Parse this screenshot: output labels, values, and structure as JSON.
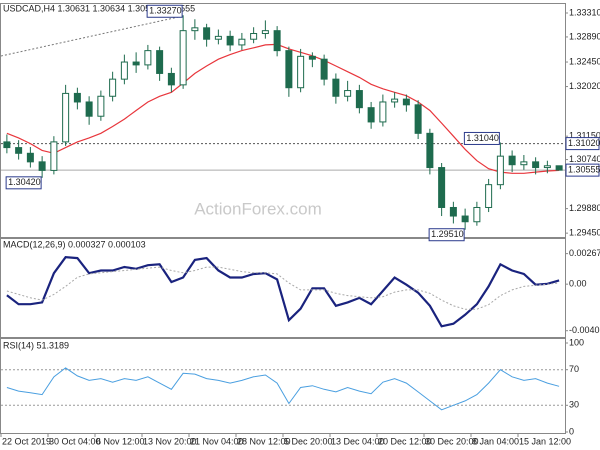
{
  "chart_data": [
    {
      "type": "candlestick",
      "title": "USDCAD,H4 1.30631 1.30634 1.30553 1.30555",
      "watermark": "ActionForex.com",
      "categories": [
        "22 Oct 2019",
        null,
        null,
        null,
        "30 Oct 04:00",
        null,
        null,
        null,
        "6 Nov 12:00",
        null,
        null,
        null,
        "13 Nov 20:00",
        null,
        null,
        null,
        "21 Nov 04:00",
        null,
        null,
        null,
        "28 Nov 12:00",
        null,
        null,
        null,
        "5 Dec 20:00",
        null,
        null,
        null,
        "13 Dec 04:00",
        null,
        null,
        null,
        "20 Dec 12:00",
        null,
        null,
        null,
        "30 Dec 20:00",
        null,
        null,
        null,
        "8 Jan 04:00",
        null,
        null,
        null,
        "15 Jan 12:00",
        null,
        null,
        null
      ],
      "open": [
        1.3105,
        1.3095,
        1.3085,
        1.307,
        1.3055,
        1.3105,
        1.319,
        1.3175,
        1.315,
        1.3185,
        1.3215,
        1.3245,
        1.324,
        1.3265,
        1.3225,
        1.3205,
        1.33,
        1.3305,
        1.3285,
        1.329,
        1.3275,
        1.3285,
        1.3295,
        1.33,
        1.3265,
        1.32,
        1.3255,
        1.325,
        1.3215,
        1.3185,
        1.3195,
        1.3165,
        1.314,
        1.3175,
        1.318,
        1.317,
        1.312,
        1.306,
        1.299,
        1.2975,
        1.2965,
        1.299,
        1.303,
        1.308,
        1.3065,
        1.307,
        1.306,
        1.30631
      ],
      "high": [
        1.3118,
        1.3108,
        1.3096,
        1.308,
        1.3115,
        1.3205,
        1.32,
        1.3185,
        1.3195,
        1.3228,
        1.3258,
        1.3262,
        1.3275,
        1.3272,
        1.3235,
        1.3327,
        1.332,
        1.3312,
        1.3302,
        1.33,
        1.3296,
        1.3306,
        1.3318,
        1.3308,
        1.3272,
        1.3268,
        1.3262,
        1.3258,
        1.3225,
        1.3212,
        1.3205,
        1.3175,
        1.3188,
        1.3192,
        1.3188,
        1.3178,
        1.3128,
        1.3068,
        1.3,
        1.2988,
        1.3,
        1.304,
        1.3104,
        1.309,
        1.3082,
        1.3078,
        1.3072,
        1.30634
      ],
      "low": [
        1.3085,
        1.3074,
        1.306,
        1.3042,
        1.3048,
        1.3098,
        1.3162,
        1.3135,
        1.3142,
        1.3176,
        1.3206,
        1.3226,
        1.3232,
        1.3212,
        1.3192,
        1.3198,
        1.3284,
        1.3272,
        1.3276,
        1.3264,
        1.3266,
        1.3278,
        1.3286,
        1.3255,
        1.3184,
        1.3192,
        1.3236,
        1.3204,
        1.3172,
        1.3176,
        1.3155,
        1.3128,
        1.3132,
        1.3165,
        1.3158,
        1.311,
        1.3048,
        1.2975,
        1.2962,
        1.2951,
        1.2958,
        1.2982,
        1.3022,
        1.3052,
        1.3056,
        1.3048,
        1.305,
        1.30553
      ],
      "close": [
        1.3095,
        1.3085,
        1.307,
        1.3055,
        1.3105,
        1.319,
        1.3175,
        1.315,
        1.3185,
        1.3215,
        1.3245,
        1.324,
        1.3265,
        1.3225,
        1.3205,
        1.33,
        1.3305,
        1.3285,
        1.329,
        1.3275,
        1.3285,
        1.3295,
        1.33,
        1.3265,
        1.32,
        1.3255,
        1.325,
        1.3215,
        1.3185,
        1.3195,
        1.3165,
        1.314,
        1.3175,
        1.318,
        1.317,
        1.312,
        1.306,
        1.299,
        1.2975,
        1.2965,
        1.299,
        1.303,
        1.308,
        1.3065,
        1.307,
        1.306,
        1.30631,
        1.30555
      ],
      "color": "#1e6b4e",
      "ma": {
        "color": "#e8363c",
        "values": [
          1.312,
          1.3112,
          1.3102,
          1.309,
          1.3085,
          1.3095,
          1.3105,
          1.3112,
          1.312,
          1.3132,
          1.3145,
          1.316,
          1.3175,
          1.3185,
          1.3192,
          1.3208,
          1.3225,
          1.3238,
          1.325,
          1.3258,
          1.3265,
          1.327,
          1.3275,
          1.3276,
          1.3268,
          1.3262,
          1.3256,
          1.3248,
          1.3238,
          1.3228,
          1.3218,
          1.3206,
          1.3198,
          1.3192,
          1.3186,
          1.3175,
          1.316,
          1.3138,
          1.3115,
          1.3092,
          1.3072,
          1.3058,
          1.3052,
          1.305,
          1.305,
          1.3052,
          1.3054,
          1.3055
        ]
      },
      "ylim": [
        1.294,
        1.3345
      ],
      "yticks": [
        {
          "value": 1.3331,
          "label": "1.33310"
        },
        {
          "value": 1.3289,
          "label": "1.32890"
        },
        {
          "value": 1.3245,
          "label": "1.32450"
        },
        {
          "value": 1.3202,
          "label": "1.32020"
        },
        {
          "value": 1.3115,
          "label": "1.31150"
        },
        {
          "value": 1.3074,
          "label": "1.30740"
        },
        {
          "value": 1.2988,
          "label": "1.29880"
        },
        {
          "value": 1.2945,
          "label": "1.29450"
        }
      ],
      "annotations": [
        {
          "value": 1.3327,
          "label": "1.33270"
        },
        {
          "value": 1.3042,
          "label": "1.30420"
        },
        {
          "value": 1.2951,
          "label": "1.29510"
        },
        {
          "value": 1.3104,
          "label": "1.31040"
        }
      ],
      "level": {
        "value": 1.3102,
        "label": "1.31020"
      },
      "price_tag": {
        "value": 1.30555,
        "label": "1.30555"
      }
    },
    {
      "type": "line",
      "title": "MACD(12,26,9) 0.000327 0.000103",
      "series": [
        {
          "color": "#1a237e",
          "values": [
            -0.00098,
            -0.00176,
            -0.00176,
            -0.0016,
            0.00096,
            0.00237,
            0.00229,
            0.00096,
            0.0012,
            0.0012,
            0.00151,
            0.00135,
            0.00166,
            0.00174,
            0.00019,
            0.00058,
            0.00213,
            0.00229,
            0.0012,
            0.00058,
            0.00058,
            0.00089,
            0.00096,
            0.00042,
            -0.00316,
            -0.00215,
            -0.00036,
            -0.00036,
            -0.0019,
            -0.0016,
            -0.00121,
            -0.00176,
            -0.00059,
            0.00058,
            -5e-05,
            -0.00075,
            -0.0019,
            -0.0037,
            -0.00347,
            -0.00269,
            -0.00176,
            -0.0002,
            0.00174,
            0.0012,
            0.00089,
            -5e-05,
            3e-05,
            0.000327
          ]
        },
        {
          "color": "#a8a8a8",
          "dashed": true,
          "values": [
            -0.0006,
            -0.0009,
            -0.0012,
            -0.0014,
            -0.0009,
            -0.0002,
            0.0006,
            0.0009,
            0.001,
            0.0011,
            0.0012,
            0.0013,
            0.0014,
            0.0015,
            0.0012,
            0.001,
            0.0012,
            0.0015,
            0.0015,
            0.0013,
            0.0011,
            0.001,
            0.001,
            0.0009,
            0.0001,
            -0.0005,
            -0.0005,
            -0.0005,
            -0.0008,
            -0.001,
            -0.0011,
            -0.0012,
            -0.0011,
            -0.0007,
            -0.0005,
            -0.0005,
            -0.0008,
            -0.0014,
            -0.0019,
            -0.0022,
            -0.0022,
            -0.0018,
            -0.001,
            -0.0005,
            -0.0002,
            -0.0001,
            0,
            0.000103
          ]
        }
      ],
      "ylim": [
        -0.00455,
        0.00291
      ],
      "yticks": [
        0.002679,
        {
          "value": 0,
          "label": "0.00"
        },
        -0.004086
      ],
      "grid": false
    },
    {
      "type": "line",
      "title": "RSI(14) 51.3189",
      "series": [
        {
          "color": "#4a9fe0",
          "values": [
            50,
            46,
            44,
            42,
            62,
            72,
            63,
            58,
            60,
            56,
            60,
            58,
            62,
            55,
            48,
            66,
            65,
            60,
            58,
            55,
            58,
            62,
            64,
            55,
            32,
            50,
            52,
            48,
            45,
            50,
            46,
            43,
            56,
            60,
            55,
            45,
            35,
            25,
            30,
            35,
            42,
            55,
            70,
            62,
            58,
            60,
            55,
            51.3189
          ]
        }
      ],
      "ylim": [
        0,
        100
      ],
      "yticks": [
        100,
        70,
        30,
        0
      ],
      "grid": true
    }
  ]
}
